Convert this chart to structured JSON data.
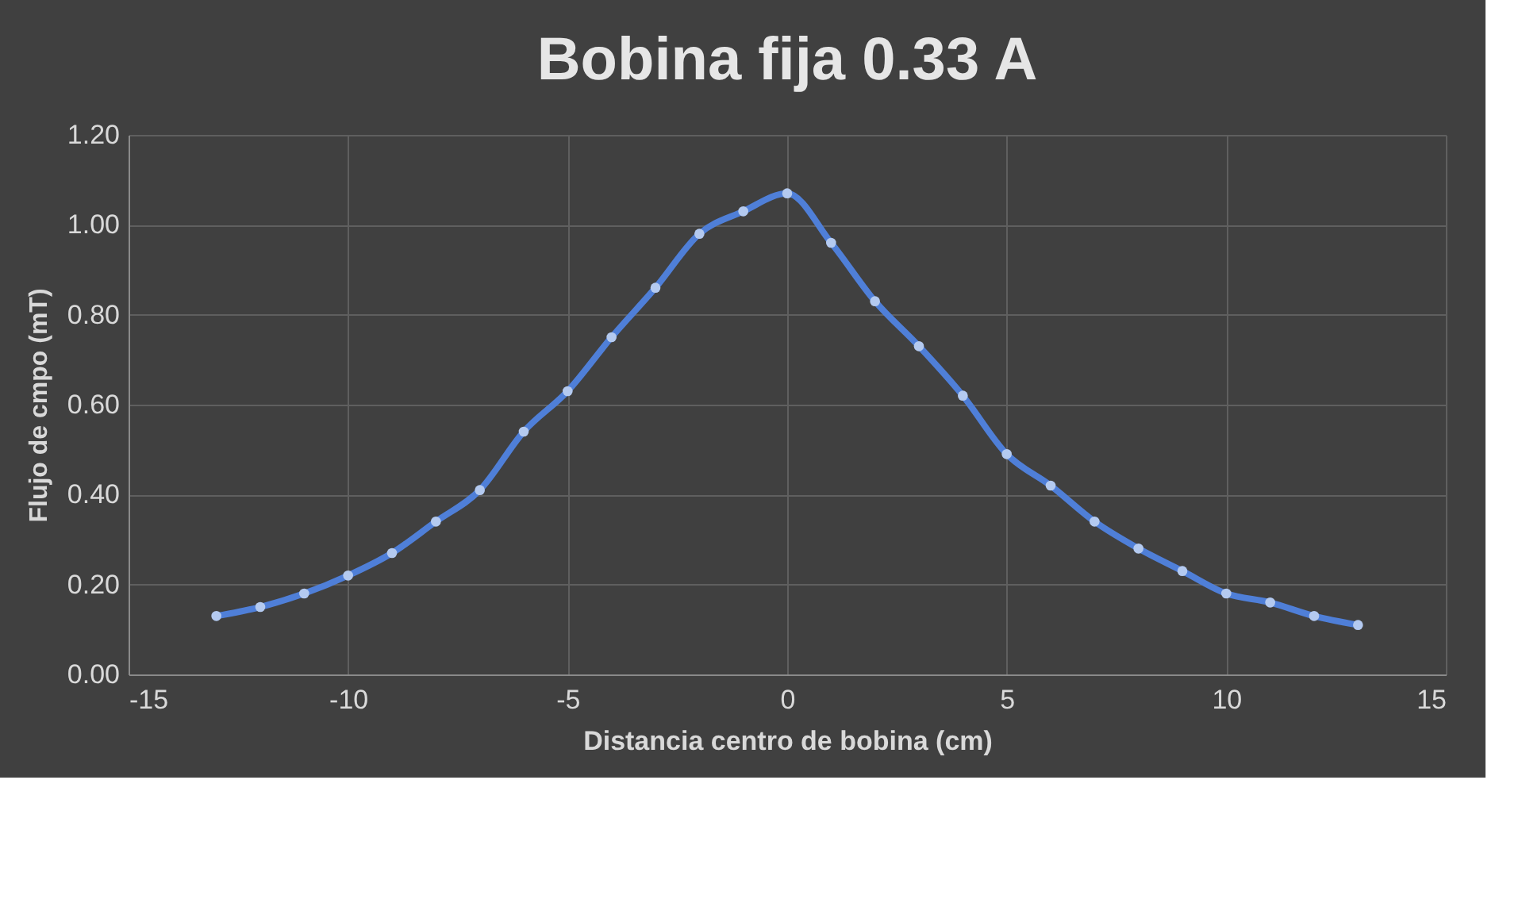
{
  "chart_data": {
    "type": "line",
    "title": "Bobina fija 0.33 A",
    "xlabel": "Distancia centro de bobina (cm)",
    "ylabel": "Flujo de cmpo (mT)",
    "x": [
      -13,
      -12,
      -11,
      -10,
      -9,
      -8,
      -7,
      -6,
      -5,
      -4,
      -3,
      -2,
      -1,
      0,
      1,
      2,
      3,
      4,
      5,
      6,
      7,
      8,
      9,
      10,
      11,
      12,
      13
    ],
    "series": [
      {
        "color": "#4f7fd8",
        "values": [
          0.13,
          0.15,
          0.18,
          0.22,
          0.27,
          0.34,
          0.41,
          0.54,
          0.63,
          0.75,
          0.86,
          0.98,
          1.03,
          1.07,
          0.96,
          0.83,
          0.73,
          0.62,
          0.49,
          0.42,
          0.34,
          0.28,
          0.23,
          0.18,
          0.16,
          0.13,
          0.11
        ]
      }
    ],
    "xlim": [
      -15,
      15
    ],
    "xticks": [
      -15,
      -10,
      -5,
      0,
      5,
      10,
      15
    ],
    "ylim": [
      0,
      1.2
    ],
    "yticks": [
      {
        "value": 0,
        "label": "0.00"
      },
      {
        "value": 0.2,
        "label": "0.20"
      },
      {
        "value": 0.4,
        "label": "0.40"
      },
      {
        "value": 0.6,
        "label": "0.60"
      },
      {
        "value": 0.8,
        "label": "0.80"
      },
      {
        "value": 1.0,
        "label": "1.00"
      },
      {
        "value": 1.2,
        "label": "1.20"
      }
    ],
    "grid": true,
    "marker": "circle",
    "line_style": "solid"
  }
}
